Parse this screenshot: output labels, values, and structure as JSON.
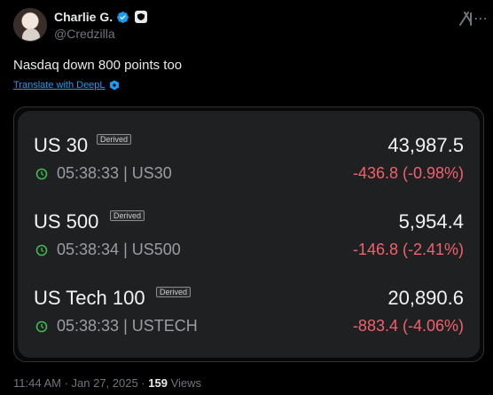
{
  "author": {
    "name": "Charlie G.",
    "handle": "@Credzilla"
  },
  "tweet": {
    "text": "Nasdaq down 800 points too",
    "translate_label": "Translate with DeepL"
  },
  "quotes": [
    {
      "symbol": "US 30",
      "tag": "Derived",
      "price": "43,987.5",
      "time": "05:38:33",
      "ticker": "| US30",
      "change": "-436.8 (-0.98%)"
    },
    {
      "symbol": "US 500",
      "tag": "Derived",
      "price": "5,954.4",
      "time": "05:38:34",
      "ticker": "| US500",
      "change": "-146.8 (-2.41%)"
    },
    {
      "symbol": "US Tech 100",
      "tag": "Derived",
      "price": "20,890.6",
      "time": "05:38:33",
      "ticker": "| USTECH",
      "change": "-883.4 (-4.06%)"
    }
  ],
  "meta": {
    "timestamp": "11:44 AM · Jan 27, 2025 · ",
    "views_count": "159",
    "views_label": " Views"
  },
  "colors": {
    "background": "#000000",
    "card": "#1f2022",
    "negative": "#f0616d",
    "clock_green": "#3fb950",
    "link": "#1d9bf0"
  },
  "icons": [
    "verified-badge-icon",
    "shield-badge-icon",
    "grok-icon",
    "deepl-icon",
    "clock-icon"
  ]
}
